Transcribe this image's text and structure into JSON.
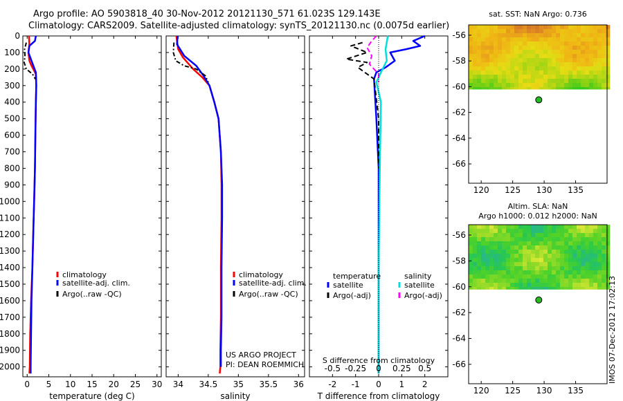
{
  "header": {
    "title_line1": "Argo profile: AO 5903818_40 30-Nov-2012 20121130_571 61.023S 129.143E",
    "title_line2": "Climatology: CARS2009. Satellite-adjusted climatology: synTS_20121130.nc (0.0075d earlier)"
  },
  "depth_axis": {
    "ticks": [
      0,
      100,
      200,
      300,
      400,
      500,
      600,
      700,
      800,
      900,
      1000,
      1100,
      1200,
      1300,
      1400,
      1500,
      1600,
      1700,
      1800,
      1900,
      2000
    ],
    "range": [
      0,
      2060
    ]
  },
  "chart_data": [
    {
      "type": "line",
      "id": "temperature",
      "xlabel": "temperature (deg C)",
      "xlim": [
        -1,
        31
      ],
      "ylim": [
        2060,
        0
      ],
      "xticks": [
        0,
        5,
        10,
        15,
        20,
        25,
        30
      ],
      "legend_position": "bottom-center",
      "series": [
        {
          "name": "climatology",
          "color": "#ff0000",
          "width": 2.5,
          "x": [
            0.4,
            0.5,
            0.3,
            0.5,
            1.0,
            2.0,
            2.1,
            2.0,
            1.9,
            1.8,
            1.6,
            1.4,
            1.2,
            0.9,
            0.7,
            0.6,
            0.5
          ],
          "y": [
            0,
            50,
            100,
            150,
            180,
            230,
            300,
            400,
            600,
            800,
            1000,
            1200,
            1400,
            1600,
            1800,
            2000,
            2040
          ]
        },
        {
          "name": "satellite-adj. clim.",
          "color": "#0000ff",
          "width": 2.5,
          "x": [
            2.0,
            1.8,
            0.5,
            0.3,
            1.0,
            2.0,
            2.1,
            2.0,
            1.9,
            1.8,
            1.6,
            1.4,
            1.2,
            1.0,
            0.9,
            0.8,
            0.8
          ],
          "y": [
            0,
            30,
            60,
            100,
            150,
            220,
            300,
            400,
            600,
            800,
            1000,
            1200,
            1400,
            1600,
            1800,
            2000,
            2040
          ]
        },
        {
          "name": "Argo(..raw -QC)",
          "color": "#000000",
          "width": 2,
          "dash": "6,3,2,3",
          "x": [
            -0.2,
            -0.6,
            -0.5,
            -0.7,
            -0.2,
            1.2,
            1.9
          ],
          "y": [
            40,
            80,
            120,
            160,
            200,
            230,
            260
          ]
        }
      ]
    },
    {
      "type": "line",
      "id": "salinity",
      "xlabel": "salinity",
      "xlim": [
        33.8,
        36.1
      ],
      "ylim": [
        2060,
        0
      ],
      "xticks": [
        34,
        34.5,
        35,
        35.5,
        36
      ],
      "xtick_labels": [
        "34",
        "34.5",
        "35",
        "35.5",
        "36"
      ],
      "legend_position": "bottom-center",
      "series": [
        {
          "name": "climatology",
          "color": "#ff0000",
          "width": 2.5,
          "x": [
            33.97,
            34.0,
            34.08,
            34.25,
            34.4,
            34.52,
            34.6,
            34.67,
            34.71,
            34.72,
            34.72,
            34.71,
            34.71,
            34.7,
            34.7,
            34.69
          ],
          "y": [
            0,
            80,
            130,
            200,
            250,
            300,
            400,
            500,
            700,
            900,
            1100,
            1400,
            1700,
            1900,
            2000,
            2040
          ]
        },
        {
          "name": "satellite-adj. clim.",
          "color": "#0000ff",
          "width": 2.5,
          "x": [
            33.99,
            33.98,
            34.1,
            34.3,
            34.42,
            34.52,
            34.6,
            34.67,
            34.71,
            34.73,
            34.73,
            34.72,
            34.72,
            34.71,
            34.71
          ],
          "y": [
            0,
            50,
            120,
            180,
            240,
            300,
            400,
            500,
            700,
            900,
            1100,
            1400,
            1700,
            1900,
            2000
          ]
        },
        {
          "name": "Argo(..raw -QC)",
          "color": "#000000",
          "width": 2,
          "dash": "6,3,2,3",
          "x": [
            33.93,
            33.92,
            33.96,
            34.1,
            34.3,
            34.45,
            34.5
          ],
          "y": [
            40,
            100,
            150,
            180,
            200,
            240,
            280
          ]
        }
      ]
    },
    {
      "type": "line",
      "id": "difference",
      "xlabel": "T difference from climatology",
      "top_label": "S difference from climatology",
      "xlim": [
        -3,
        3
      ],
      "ylim": [
        2060,
        0
      ],
      "xticks": [
        -2,
        -1,
        0,
        1,
        2
      ],
      "top_xticks": [
        -2,
        -1,
        0,
        1,
        2
      ],
      "top_xtick_labels": [
        "-0.5",
        "-0.25",
        "0",
        "0.25",
        "0.5"
      ],
      "legend_position": "bottom",
      "legend_group_titles": {
        "temperature": "temperature",
        "salinity": "salinity"
      },
      "series": [
        {
          "name": "satellite",
          "group": "temperature",
          "color": "#0000ff",
          "width": 2.5,
          "x": [
            2.0,
            1.5,
            1.8,
            1.2,
            0.5,
            0.7,
            0.3,
            -0.1,
            -0.2,
            -0.1,
            0.0,
            0.0
          ],
          "y": [
            0,
            30,
            60,
            80,
            100,
            150,
            190,
            220,
            260,
            500,
            800,
            2040
          ]
        },
        {
          "name": "Argo(-adj)",
          "group": "temperature",
          "color": "#000000",
          "width": 2,
          "dash": "7,4",
          "x": [
            -0.7,
            -1.2,
            -0.5,
            -1.4,
            -0.5,
            -0.9,
            -0.6,
            -0.2,
            0.0,
            0.0
          ],
          "y": [
            40,
            60,
            100,
            140,
            160,
            190,
            220,
            260,
            500,
            800
          ]
        },
        {
          "name": "satellite",
          "group": "salinity",
          "color": "#00dddd",
          "width": 2.5,
          "x": [
            0.4,
            0.3,
            0.35,
            0.1,
            -0.1,
            0.1,
            0.05,
            0.0,
            0.0
          ],
          "y": [
            0,
            80,
            150,
            220,
            280,
            400,
            800,
            1400,
            2040
          ]
        },
        {
          "name": "Argo(-adj)",
          "group": "salinity",
          "color": "#ff00ff",
          "width": 2,
          "dash": "7,4",
          "x": [
            -0.1,
            -0.3,
            -0.5,
            -0.3,
            -0.4,
            -0.2,
            0.0,
            0.0
          ],
          "y": [
            0,
            30,
            70,
            120,
            170,
            200,
            230,
            280
          ]
        }
      ]
    },
    {
      "type": "heatmap",
      "id": "sst-map",
      "title": "sat. SST: NaN Argo: 0.736",
      "xlim": [
        118,
        140
      ],
      "ylim": [
        -67.5,
        -55.2
      ],
      "xticks": [
        120,
        125,
        130,
        135
      ],
      "yticks": [
        -56,
        -58,
        -60,
        -62,
        -64,
        -66
      ],
      "data_extent_y": [
        -60.2,
        -55.2
      ],
      "argo_position": {
        "lon": 129.143,
        "lat": -61.023
      },
      "palette": "orange-yellow-green"
    },
    {
      "type": "heatmap",
      "id": "sla-map",
      "title_line1": "Altim. SLA: NaN",
      "title_line2": "Argo h1000: 0.012 h2000: NaN",
      "xlim": [
        118,
        140
      ],
      "ylim": [
        -67.5,
        -55.2
      ],
      "xticks": [
        120,
        125,
        130,
        135
      ],
      "yticks": [
        -56,
        -58,
        -60,
        -62,
        -64,
        -66
      ],
      "data_extent_y": [
        -60.2,
        -55.2
      ],
      "argo_position": {
        "lon": 129.143,
        "lat": -61.023
      },
      "palette": "green-cyan-yellow"
    }
  ],
  "annotations": {
    "project_line1": "US ARGO PROJECT",
    "project_line2": "PI: DEAN ROEMMICH",
    "imos_stamp": "IMOS 07-Dec-2012 17:02:13"
  }
}
